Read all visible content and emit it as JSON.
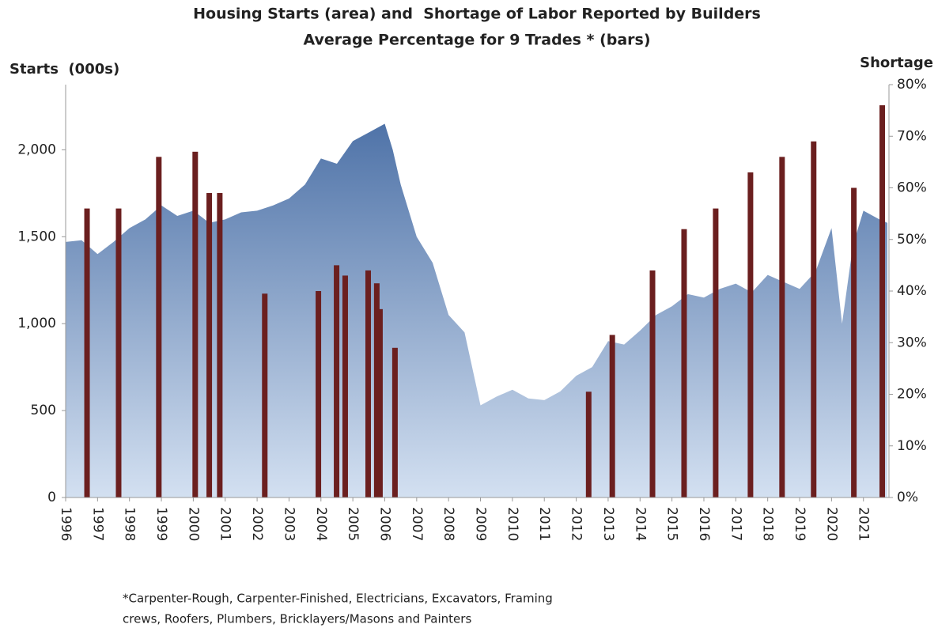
{
  "chart_data": {
    "type": "area",
    "title": "Housing Starts (area) and  Shortage of Labor Reported by Builders",
    "subtitle": "Average Percentage for 9 Trades * (bars)",
    "y_label": "Starts  (000s)",
    "y2_label": "Shortage",
    "annotations": [
      "*Carpenter-Rough, Carpenter-Finished, Electricians, Excavators, Framing",
      "crews, Roofers, Plumbers, Bricklayers/Masons and Painters"
    ],
    "xlim": [
      1996,
      2021.8
    ],
    "xticks": [
      1996,
      1997,
      1998,
      1999,
      2000,
      2001,
      2002,
      2003,
      2004,
      2005,
      2006,
      2007,
      2008,
      2009,
      2010,
      2011,
      2012,
      2013,
      2014,
      2015,
      2016,
      2017,
      2018,
      2019,
      2020,
      2021
    ],
    "ylim": [
      0,
      2375
    ],
    "yticks": [
      0,
      500,
      {
        "value": 1000,
        "label": "1,000"
      },
      {
        "value": 1500,
        "label": "1,500"
      },
      {
        "value": 2000,
        "label": "2,000"
      }
    ],
    "y2lim": [
      0,
      80
    ],
    "y2ticks": [
      {
        "value": 0,
        "label": "0%"
      },
      {
        "value": 10,
        "label": "10%"
      },
      {
        "value": 20,
        "label": "20%"
      },
      {
        "value": 30,
        "label": "30%"
      },
      {
        "value": 40,
        "label": "40%"
      },
      {
        "value": 50,
        "label": "50%"
      },
      {
        "value": 60,
        "label": "60%"
      },
      {
        "value": 70,
        "label": "70%"
      },
      {
        "value": 80,
        "label": "80%"
      }
    ],
    "series": [
      {
        "type": "area",
        "color": "#4f73a8",
        "x": [
          1996,
          1996.5,
          1997,
          1997.5,
          1998,
          1998.5,
          1999,
          1999.5,
          2000,
          2000.5,
          2001,
          2001.5,
          2002,
          2002.5,
          2003,
          2003.5,
          2004,
          2004.5,
          2005,
          2005.5,
          2006,
          2006.25,
          2006.5,
          2007,
          2007.5,
          2008,
          2008.5,
          2009,
          2009.5,
          2010,
          2010.5,
          2011,
          2011.5,
          2012,
          2012.5,
          2013,
          2013.5,
          2014,
          2014.5,
          2015,
          2015.5,
          2016,
          2016.5,
          2017,
          2017.5,
          2018,
          2018.5,
          2019,
          2019.5,
          2020,
          2020.33,
          2020.67,
          2021,
          2021.5,
          2021.75
        ],
        "values": [
          1470,
          1480,
          1400,
          1470,
          1550,
          1600,
          1680,
          1620,
          1650,
          1580,
          1600,
          1640,
          1650,
          1680,
          1720,
          1800,
          1950,
          1920,
          2050,
          2100,
          2150,
          2000,
          1800,
          1500,
          1350,
          1050,
          950,
          530,
          580,
          620,
          570,
          560,
          610,
          700,
          750,
          900,
          880,
          960,
          1050,
          1100,
          1170,
          1150,
          1200,
          1230,
          1180,
          1280,
          1240,
          1200,
          1300,
          1550,
          1000,
          1450,
          1650,
          1600,
          1580
        ]
      },
      {
        "type": "bar",
        "axis": "y2",
        "color": "#6b1f1f",
        "x": [
          1996.67,
          1997.66,
          1998.92,
          2000.06,
          2000.5,
          2000.83,
          2002.24,
          2003.92,
          2004.49,
          2004.76,
          2005.48,
          2005.75,
          2005.85,
          2006.32,
          2012.39,
          2013.13,
          2014.39,
          2015.38,
          2016.37,
          2017.46,
          2018.45,
          2019.44,
          2020.7,
          2021.59
        ],
        "values": [
          56,
          56,
          66,
          67,
          59,
          59,
          39.5,
          40,
          45,
          43,
          44,
          41.5,
          36.5,
          29,
          20.5,
          31.5,
          44,
          52,
          56,
          63,
          66,
          69,
          60,
          76
        ]
      }
    ]
  }
}
